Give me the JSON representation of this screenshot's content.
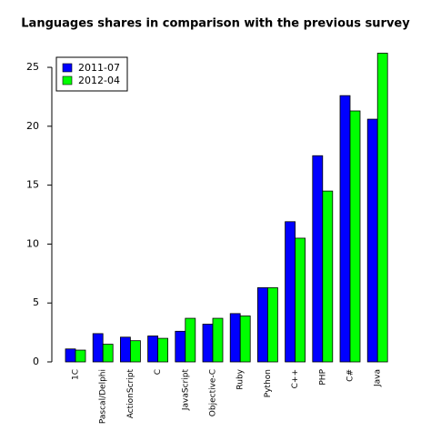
{
  "chart_data": {
    "type": "bar",
    "title": "Languages shares in comparison with the previous survey",
    "categories": [
      "1C",
      "Pascal/Delphi",
      "ActionScript",
      "C",
      "JavaScript",
      "Objective-C",
      "Ruby",
      "Python",
      "C++",
      "PHP",
      "C#",
      "Java"
    ],
    "series": [
      {
        "name": "2011-07",
        "color": "#0000ff",
        "values": [
          1.1,
          2.4,
          2.1,
          2.2,
          2.6,
          3.2,
          4.1,
          6.3,
          11.9,
          17.5,
          22.6,
          20.6
        ]
      },
      {
        "name": "2012-04",
        "color": "#00ff00",
        "values": [
          1.0,
          1.5,
          1.8,
          2.0,
          3.7,
          3.7,
          3.9,
          6.3,
          10.5,
          14.5,
          21.3,
          26.2
        ]
      }
    ],
    "ylim": [
      0,
      26.2
    ],
    "yticks": [
      0,
      5,
      10,
      15,
      20,
      25
    ],
    "legend": "top-left",
    "grid": false
  }
}
